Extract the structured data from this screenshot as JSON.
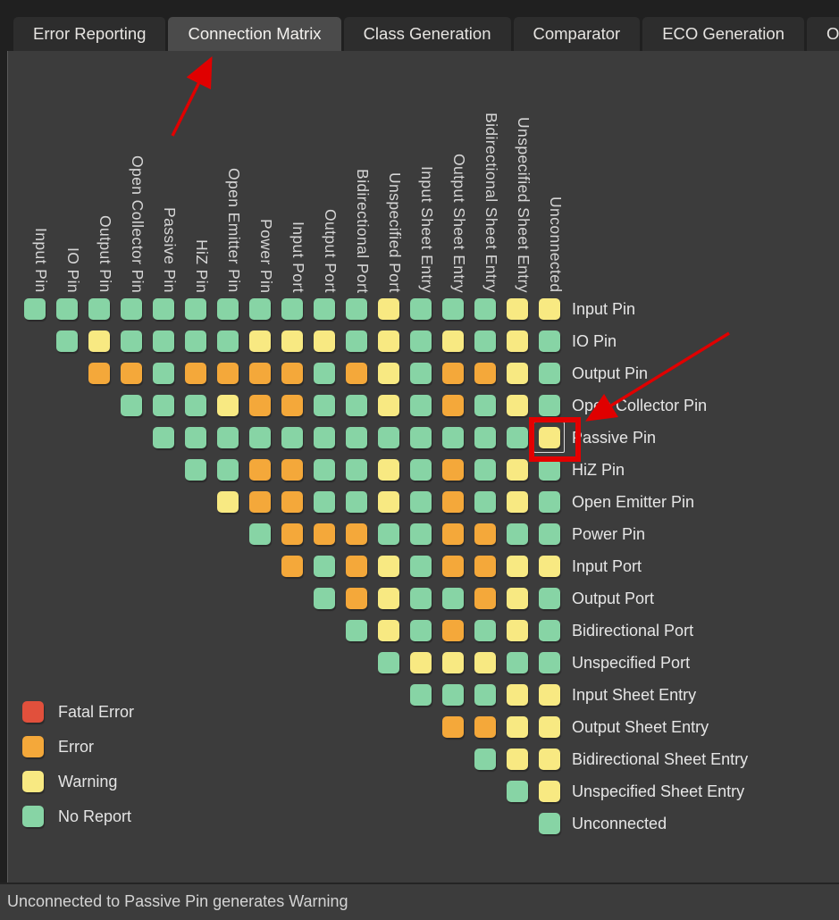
{
  "tabs": {
    "items": [
      {
        "label": "Error Reporting",
        "selected": false
      },
      {
        "label": "Connection Matrix",
        "selected": true
      },
      {
        "label": "Class Generation",
        "selected": false
      },
      {
        "label": "Comparator",
        "selected": false
      },
      {
        "label": "ECO Generation",
        "selected": false
      },
      {
        "label": "Opt",
        "selected": false
      }
    ]
  },
  "matrix": {
    "labels": [
      "Input Pin",
      "IO Pin",
      "Output Pin",
      "Open Collector Pin",
      "Passive Pin",
      "HiZ Pin",
      "Open Emitter Pin",
      "Power Pin",
      "Input Port",
      "Output Port",
      "Bidirectional Port",
      "Unspecified Port",
      "Input Sheet Entry",
      "Output Sheet Entry",
      "Bidirectional Sheet Entry",
      "Unspecified Sheet Entry",
      "Unconnected"
    ],
    "color_map": {
      "G": "#87D4A5",
      "Y": "#F8E982",
      "O": "#F4A83A",
      "R": "#E1503C"
    },
    "rows": [
      {
        "label": "Input Pin",
        "cells": [
          "G",
          "G",
          "G",
          "G",
          "G",
          "G",
          "G",
          "G",
          "G",
          "G",
          "G",
          "Y",
          "G",
          "G",
          "G",
          "Y",
          "Y"
        ]
      },
      {
        "label": "IO Pin",
        "cells": [
          "G",
          "Y",
          "G",
          "G",
          "G",
          "G",
          "Y",
          "Y",
          "Y",
          "G",
          "Y",
          "G",
          "Y",
          "G",
          "Y",
          "G"
        ]
      },
      {
        "label": "Output Pin",
        "cells": [
          "O",
          "O",
          "G",
          "O",
          "O",
          "O",
          "O",
          "G",
          "O",
          "Y",
          "G",
          "O",
          "O",
          "Y",
          "G"
        ]
      },
      {
        "label": "Open Collector Pin",
        "cells": [
          "G",
          "G",
          "G",
          "Y",
          "O",
          "O",
          "G",
          "G",
          "Y",
          "G",
          "O",
          "G",
          "Y",
          "G"
        ]
      },
      {
        "label": "Passive Pin",
        "cells": [
          "G",
          "G",
          "G",
          "G",
          "G",
          "G",
          "G",
          "G",
          "G",
          "G",
          "G",
          "G",
          "Y"
        ]
      },
      {
        "label": "HiZ Pin",
        "cells": [
          "G",
          "G",
          "O",
          "O",
          "G",
          "G",
          "Y",
          "G",
          "O",
          "G",
          "Y",
          "G"
        ]
      },
      {
        "label": "Open Emitter Pin",
        "cells": [
          "Y",
          "O",
          "O",
          "G",
          "G",
          "Y",
          "G",
          "O",
          "G",
          "Y",
          "G"
        ]
      },
      {
        "label": "Power Pin",
        "cells": [
          "G",
          "O",
          "O",
          "O",
          "G",
          "G",
          "O",
          "O",
          "G",
          "G"
        ]
      },
      {
        "label": "Input Port",
        "cells": [
          "O",
          "G",
          "O",
          "Y",
          "G",
          "O",
          "O",
          "Y",
          "Y"
        ]
      },
      {
        "label": "Output Port",
        "cells": [
          "G",
          "O",
          "Y",
          "G",
          "G",
          "O",
          "Y",
          "G"
        ]
      },
      {
        "label": "Bidirectional Port",
        "cells": [
          "G",
          "Y",
          "G",
          "O",
          "G",
          "Y",
          "G"
        ]
      },
      {
        "label": "Unspecified Port",
        "cells": [
          "G",
          "Y",
          "Y",
          "Y",
          "G",
          "G"
        ]
      },
      {
        "label": "Input Sheet Entry",
        "cells": [
          "G",
          "G",
          "G",
          "Y",
          "Y"
        ]
      },
      {
        "label": "Output Sheet Entry",
        "cells": [
          "O",
          "O",
          "Y",
          "Y"
        ]
      },
      {
        "label": "Bidirectional Sheet Entry",
        "cells": [
          "G",
          "Y",
          "Y"
        ]
      },
      {
        "label": "Unspecified Sheet Entry",
        "cells": [
          "G",
          "Y"
        ]
      },
      {
        "label": "Unconnected",
        "cells": [
          "G"
        ]
      }
    ]
  },
  "legend": {
    "items": [
      {
        "label": "Fatal Error",
        "color_key": "R"
      },
      {
        "label": "Error",
        "color_key": "O"
      },
      {
        "label": "Warning",
        "color_key": "Y"
      },
      {
        "label": "No Report",
        "color_key": "G"
      }
    ]
  },
  "highlight": {
    "row_label": "Passive Pin",
    "column_label": "Unconnected",
    "outline_color": "#DCDCDC",
    "annotation_color": "#E30000"
  },
  "annotations": {
    "arrow_color": "#E00000",
    "arrows": [
      {
        "name": "arrow-to-connection-matrix-tab"
      },
      {
        "name": "arrow-to-highlighted-cell"
      }
    ]
  },
  "status_bar": {
    "text": "Unconnected to Passive Pin generates Warning"
  }
}
